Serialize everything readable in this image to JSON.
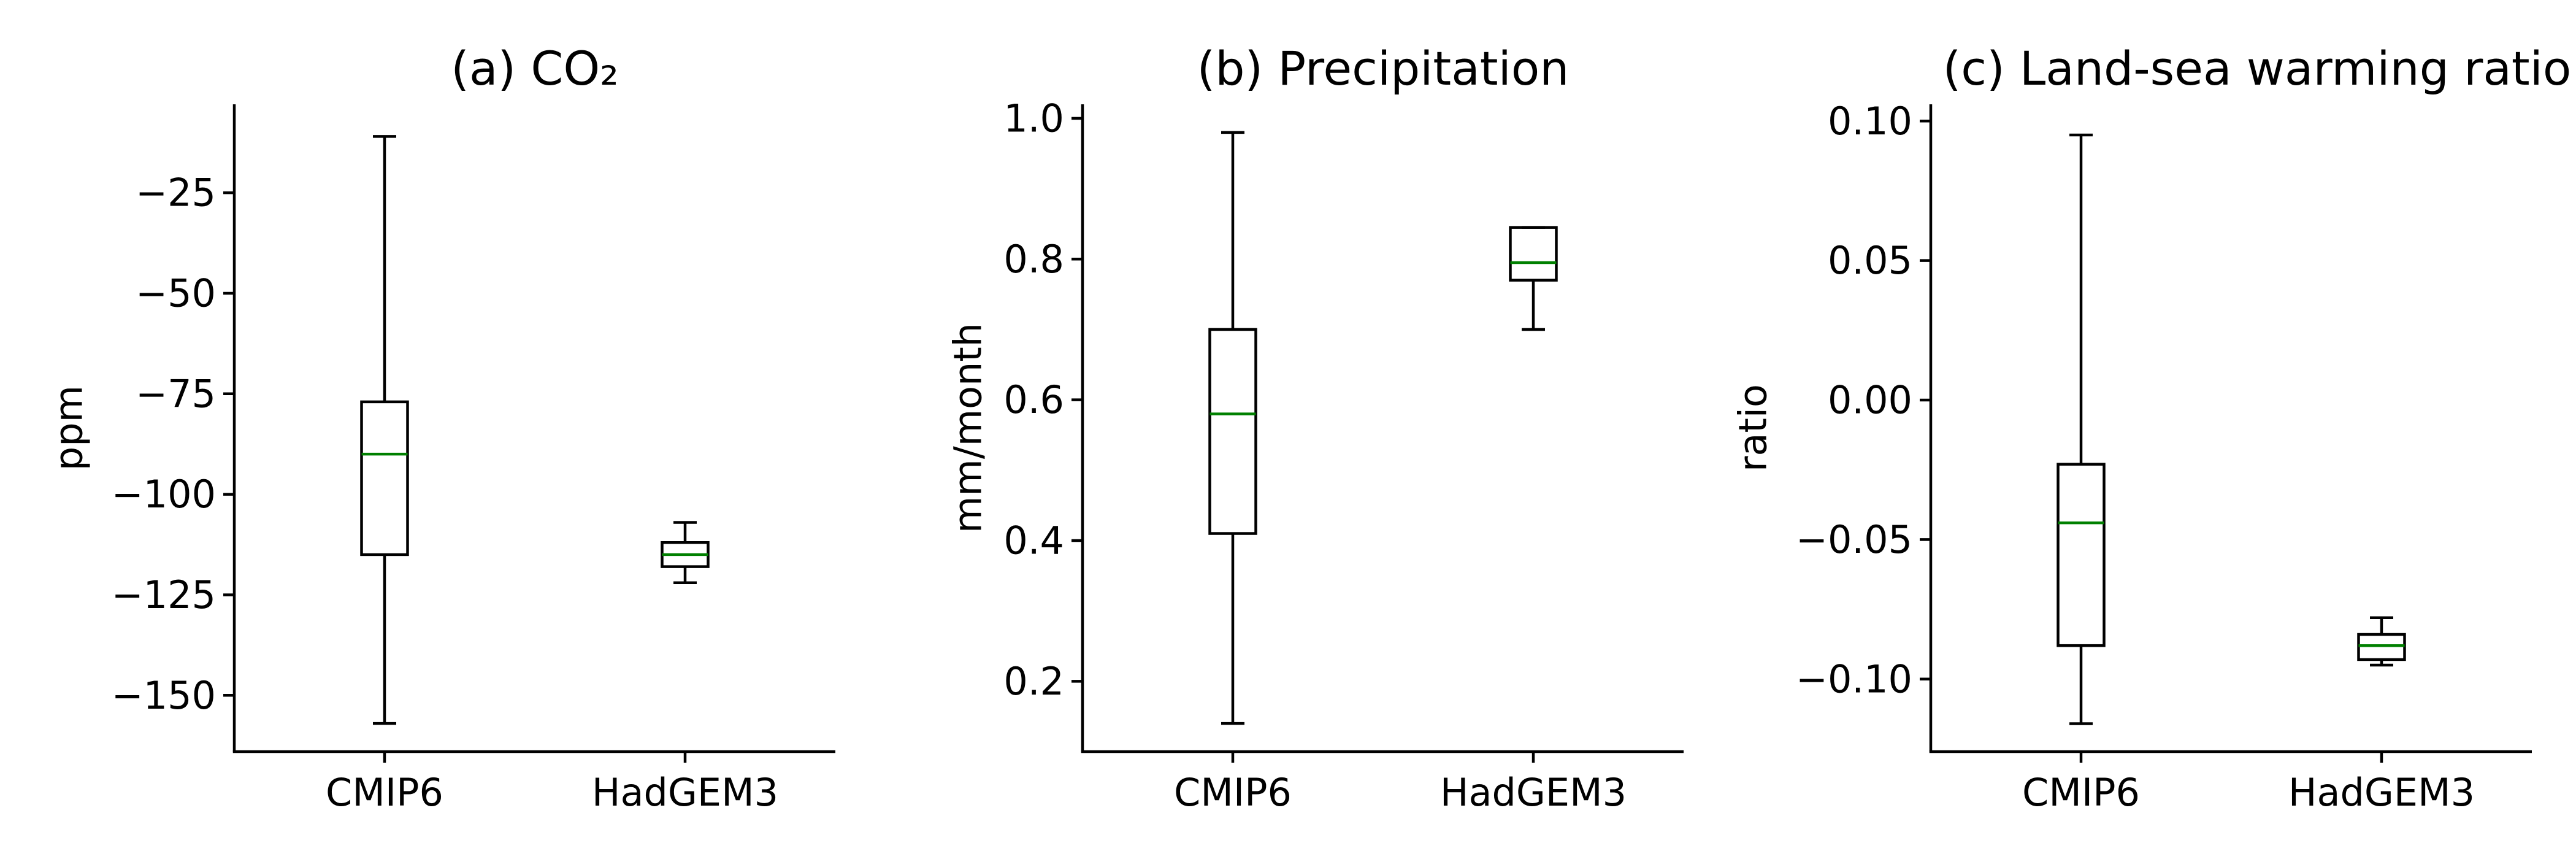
{
  "figure": {
    "line_color": "#000000",
    "median_color": "#008000",
    "background": "#ffffff"
  },
  "chart_data": [
    {
      "type": "box",
      "title": "(a) CO₂",
      "ylabel": "ppm",
      "categories": [
        "CMIP6",
        "HadGEM3"
      ],
      "ylim": [
        -164,
        -3
      ],
      "yticks": [
        -150,
        -125,
        -100,
        -75,
        -50,
        -25
      ],
      "ytick_labels": [
        "−150",
        "−125",
        "−100",
        "−75",
        "−50",
        "−25"
      ],
      "boxes": [
        {
          "category": "CMIP6",
          "whislo": -157,
          "q1": -115,
          "med": -90,
          "q3": -77,
          "whishi": -11
        },
        {
          "category": "HadGEM3",
          "whislo": -122,
          "q1": -118,
          "med": -115,
          "q3": -112,
          "whishi": -107
        }
      ]
    },
    {
      "type": "box",
      "title": "(b) Precipitation",
      "ylabel": "mm/month",
      "categories": [
        "CMIP6",
        "HadGEM3"
      ],
      "ylim": [
        0.1,
        1.02
      ],
      "yticks": [
        0.2,
        0.4,
        0.6,
        0.8,
        1.0
      ],
      "ytick_labels": [
        "0.2",
        "0.4",
        "0.6",
        "0.8",
        "1.0"
      ],
      "boxes": [
        {
          "category": "CMIP6",
          "whislo": 0.14,
          "q1": 0.41,
          "med": 0.58,
          "q3": 0.7,
          "whishi": 0.98
        },
        {
          "category": "HadGEM3",
          "whislo": 0.7,
          "q1": 0.77,
          "med": 0.795,
          "q3": 0.845,
          "whishi": 0.845
        }
      ]
    },
    {
      "type": "box",
      "title": "(c) Land-sea warming ratio",
      "ylabel": "ratio",
      "categories": [
        "CMIP6",
        "HadGEM3"
      ],
      "ylim": [
        -0.126,
        0.106
      ],
      "yticks": [
        -0.1,
        -0.05,
        0.0,
        0.05,
        0.1
      ],
      "ytick_labels": [
        "−0.10",
        "−0.05",
        "0.00",
        "0.05",
        "0.10"
      ],
      "boxes": [
        {
          "category": "CMIP6",
          "whislo": -0.116,
          "q1": -0.088,
          "med": -0.044,
          "q3": -0.023,
          "whishi": 0.095
        },
        {
          "category": "HadGEM3",
          "whislo": -0.095,
          "q1": -0.093,
          "med": -0.088,
          "q3": -0.084,
          "whishi": -0.078
        }
      ]
    }
  ]
}
